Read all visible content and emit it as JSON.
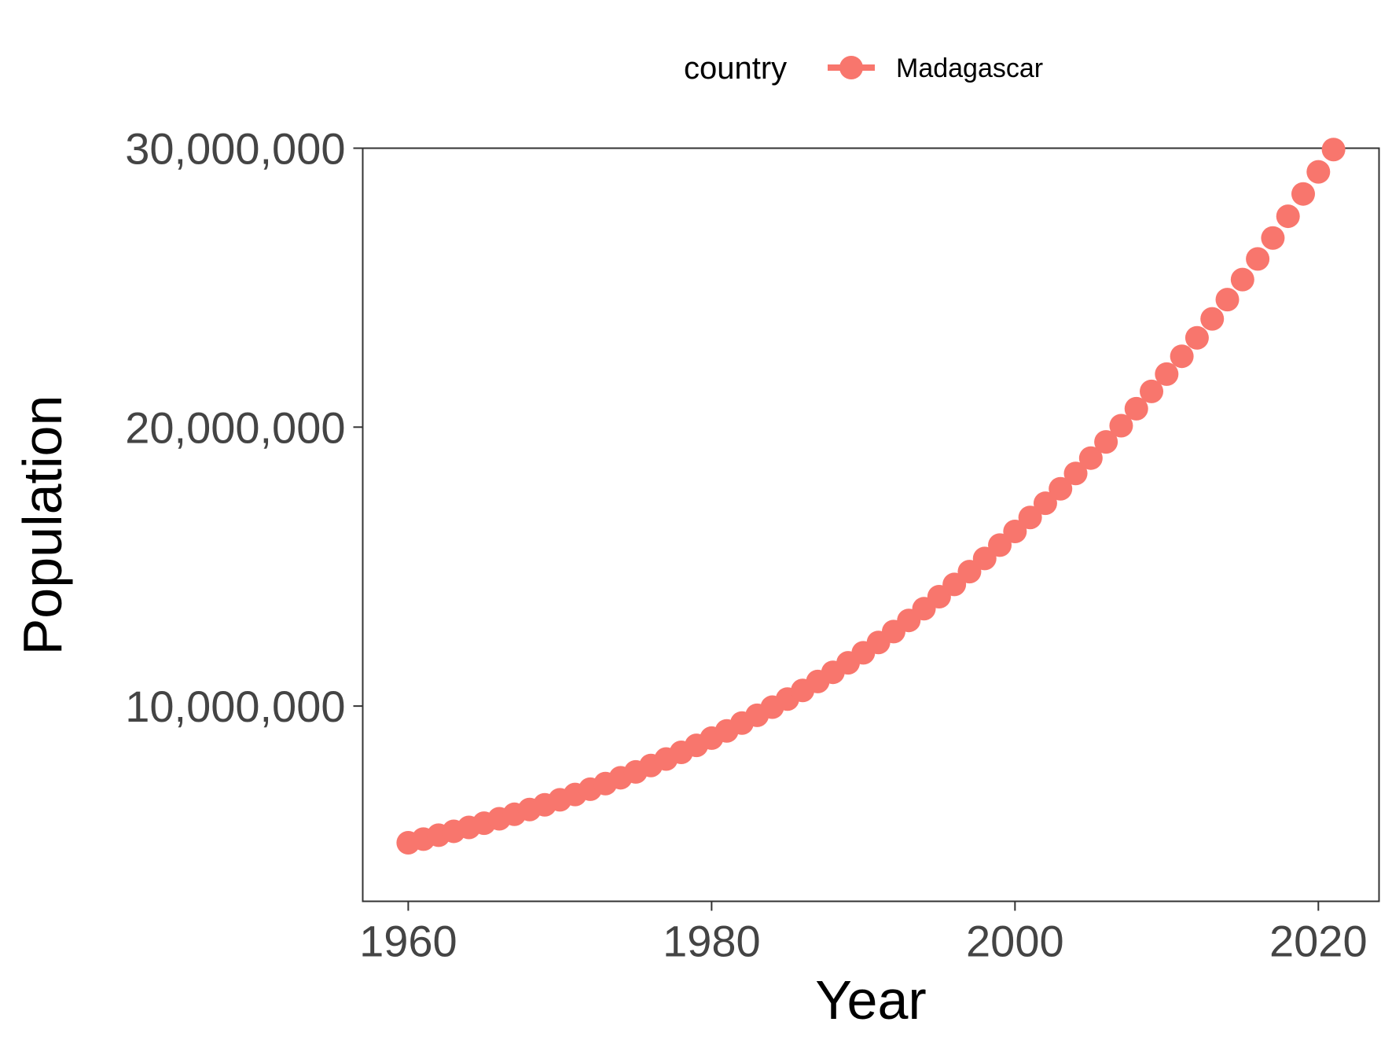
{
  "chart_data": {
    "type": "line",
    "xlabel": "Year",
    "ylabel": "Population",
    "xlim": [
      1957,
      2024
    ],
    "ylim": [
      3000000,
      30000000
    ],
    "x_ticks": [
      1960,
      1980,
      2000,
      2020
    ],
    "x_tick_labels": [
      "1960",
      "1980",
      "2000",
      "2020"
    ],
    "y_ticks": [
      10000000,
      20000000,
      30000000
    ],
    "y_tick_labels": [
      "10,000,000",
      "20,000,000",
      "30,000,000"
    ],
    "grid": false,
    "legend": {
      "title": "country",
      "position": "top"
    },
    "series": [
      {
        "name": "Madagascar",
        "color": "#F8766D",
        "x": [
          1960,
          1961,
          1962,
          1963,
          1964,
          1965,
          1966,
          1967,
          1968,
          1969,
          1970,
          1971,
          1972,
          1973,
          1974,
          1975,
          1976,
          1977,
          1978,
          1979,
          1980,
          1981,
          1982,
          1983,
          1984,
          1985,
          1986,
          1987,
          1988,
          1989,
          1990,
          1991,
          1992,
          1993,
          1994,
          1995,
          1996,
          1997,
          1998,
          1999,
          2000,
          2001,
          2002,
          2003,
          2004,
          2005,
          2006,
          2007,
          2008,
          2009,
          2010,
          2011,
          2012,
          2013,
          2014,
          2015,
          2016,
          2017,
          2018,
          2019,
          2020,
          2021
        ],
        "values": [
          5100000,
          5230000,
          5370000,
          5510000,
          5650000,
          5800000,
          5960000,
          6120000,
          6290000,
          6460000,
          6640000,
          6830000,
          7020000,
          7220000,
          7430000,
          7640000,
          7870000,
          8100000,
          8340000,
          8590000,
          8850000,
          9110000,
          9390000,
          9670000,
          9960000,
          10250000,
          10560000,
          10880000,
          11210000,
          11550000,
          11910000,
          12280000,
          12670000,
          13070000,
          13490000,
          13920000,
          14360000,
          14820000,
          15290000,
          15770000,
          16260000,
          16760000,
          17270000,
          17790000,
          18340000,
          18890000,
          19470000,
          20050000,
          20660000,
          21280000,
          21900000,
          22540000,
          23200000,
          23880000,
          24570000,
          25290000,
          26030000,
          26780000,
          27560000,
          28360000,
          29150000,
          29950000
        ]
      }
    ]
  }
}
